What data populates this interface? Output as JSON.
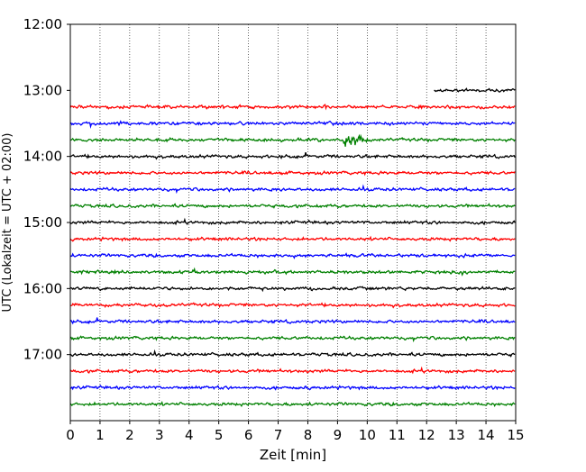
{
  "chart_data": {
    "type": "line",
    "title": "",
    "xlabel": "Zeit  [min]",
    "ylabel": "UTC (Lokalzeit = UTC + 02:00)",
    "xlim": [
      0,
      15
    ],
    "ylim_minutes_top_to_bottom": [
      720,
      1080
    ],
    "grid": "vertical dotted lines at each minute",
    "x_ticks": [
      "0",
      "1",
      "2",
      "3",
      "4",
      "5",
      "6",
      "7",
      "8",
      "9",
      "10",
      "11",
      "12",
      "13",
      "14",
      "15"
    ],
    "y_ticks": [
      {
        "label": "12:00",
        "minutes": 720
      },
      {
        "label": "13:00",
        "minutes": 780
      },
      {
        "label": "14:00",
        "minutes": 840
      },
      {
        "label": "15:00",
        "minutes": 900
      },
      {
        "label": "16:00",
        "minutes": 960
      },
      {
        "label": "17:00",
        "minutes": 1020
      }
    ],
    "color_cycle": [
      "#ff0000",
      "#0000ff",
      "#008000",
      "#000000"
    ],
    "traces": [
      {
        "start": "13:00",
        "minutes": 780,
        "color": "#000000",
        "x_start": 12.25,
        "x_end": 15
      },
      {
        "start": "13:15",
        "minutes": 795,
        "color": "#ff0000",
        "x_start": 0,
        "x_end": 15
      },
      {
        "start": "13:30",
        "minutes": 810,
        "color": "#0000ff",
        "x_start": 0,
        "x_end": 15
      },
      {
        "start": "13:45",
        "minutes": 825,
        "color": "#008000",
        "x_start": 0,
        "x_end": 15,
        "event_at_min": 9.2
      },
      {
        "start": "14:00",
        "minutes": 840,
        "color": "#000000",
        "x_start": 0,
        "x_end": 15
      },
      {
        "start": "14:15",
        "minutes": 855,
        "color": "#ff0000",
        "x_start": 0,
        "x_end": 15
      },
      {
        "start": "14:30",
        "minutes": 870,
        "color": "#0000ff",
        "x_start": 0,
        "x_end": 15
      },
      {
        "start": "14:45",
        "minutes": 885,
        "color": "#008000",
        "x_start": 0,
        "x_end": 15
      },
      {
        "start": "15:00",
        "minutes": 900,
        "color": "#000000",
        "x_start": 0,
        "x_end": 15
      },
      {
        "start": "15:15",
        "minutes": 915,
        "color": "#ff0000",
        "x_start": 0,
        "x_end": 15
      },
      {
        "start": "15:30",
        "minutes": 930,
        "color": "#0000ff",
        "x_start": 0,
        "x_end": 15
      },
      {
        "start": "15:45",
        "minutes": 945,
        "color": "#008000",
        "x_start": 0,
        "x_end": 15
      },
      {
        "start": "16:00",
        "minutes": 960,
        "color": "#000000",
        "x_start": 0,
        "x_end": 15
      },
      {
        "start": "16:15",
        "minutes": 975,
        "color": "#ff0000",
        "x_start": 0,
        "x_end": 15
      },
      {
        "start": "16:30",
        "minutes": 990,
        "color": "#0000ff",
        "x_start": 0,
        "x_end": 15
      },
      {
        "start": "16:45",
        "minutes": 1005,
        "color": "#008000",
        "x_start": 0,
        "x_end": 15
      },
      {
        "start": "17:00",
        "minutes": 1020,
        "color": "#000000",
        "x_start": 0,
        "x_end": 15
      },
      {
        "start": "17:15",
        "minutes": 1035,
        "color": "#ff0000",
        "x_start": 0,
        "x_end": 15
      },
      {
        "start": "17:30",
        "minutes": 1050,
        "color": "#0000ff",
        "x_start": 0,
        "x_end": 15
      },
      {
        "start": "17:45",
        "minutes": 1065,
        "color": "#008000",
        "x_start": 0,
        "x_end": 15
      }
    ]
  }
}
